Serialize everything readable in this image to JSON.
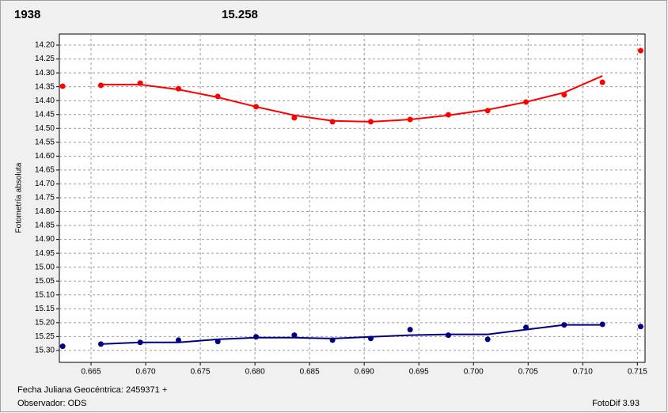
{
  "chart_data": {
    "type": "scatter",
    "header_labels": [
      "1938",
      "15.258"
    ],
    "y_label": "Fotometría absoluta",
    "footer": {
      "date": "Fecha Juliana Geocéntrica: 2459371 +",
      "observer": "Observador: ODS",
      "software": "FotoDif 3.93"
    },
    "xlim": [
      0.6621,
      0.7157
    ],
    "ylim": [
      15.343,
      14.16
    ],
    "xticks": [
      0.665,
      {
        "value": 0.67,
        "label": "0.670"
      },
      0.675,
      {
        "value": 0.68,
        "label": "0.680"
      },
      0.685,
      {
        "value": 0.69,
        "label": "0.690"
      },
      0.695,
      {
        "value": 0.7,
        "label": "0.700"
      },
      0.705,
      {
        "value": 0.71,
        "label": "0.710"
      },
      0.715
    ],
    "yticks": [
      {
        "value": 14.2,
        "label": "14.20"
      },
      14.25,
      {
        "value": 14.3,
        "label": "14.30"
      },
      14.35,
      {
        "value": 14.4,
        "label": "14.40"
      },
      14.45,
      {
        "value": 14.5,
        "label": "14.50"
      },
      14.55,
      {
        "value": 14.6,
        "label": "14.60"
      },
      14.65,
      {
        "value": 14.7,
        "label": "14.70"
      },
      14.75,
      {
        "value": 14.8,
        "label": "14.80"
      },
      14.85,
      {
        "value": 14.9,
        "label": "14.90"
      },
      14.95,
      {
        "value": 15,
        "label": "15.00"
      },
      15.05,
      {
        "value": 15.1,
        "label": "15.10"
      },
      15.15,
      {
        "value": 15.2,
        "label": "15.20"
      },
      15.25,
      {
        "value": 15.3,
        "label": "15.30"
      }
    ],
    "grid": true,
    "series": [
      {
        "color": "#ff0000",
        "mode": "markers",
        "x": [
          0.6624,
          0.6659,
          0.6695,
          0.673,
          0.6766,
          0.6801,
          0.6836,
          0.6871,
          0.6906,
          0.6942,
          0.6977,
          0.7013,
          0.7048,
          0.7083,
          0.7118,
          0.7153
        ],
        "values": [
          14.348,
          14.345,
          14.337,
          14.357,
          14.385,
          14.422,
          14.462,
          14.476,
          14.476,
          14.468,
          14.451,
          14.436,
          14.405,
          14.379,
          14.334,
          14.22
        ]
      },
      {
        "color": "#000080",
        "mode": "markers",
        "x": [
          0.6624,
          0.6659,
          0.6695,
          0.673,
          0.6766,
          0.6801,
          0.6836,
          0.6871,
          0.6906,
          0.6942,
          0.6977,
          0.7013,
          0.7048,
          0.7083,
          0.7118,
          0.7153
        ],
        "values": [
          15.285,
          15.277,
          15.271,
          15.263,
          15.268,
          15.251,
          15.245,
          15.263,
          15.257,
          15.225,
          15.245,
          15.26,
          15.217,
          15.208,
          15.206,
          15.214
        ]
      },
      {
        "color": "#ff0000",
        "mode": "line",
        "x": [
          0.6659,
          0.6695,
          0.673,
          0.6766,
          0.6801,
          0.6836,
          0.6871,
          0.6906,
          0.6942,
          0.6977,
          0.7013,
          0.7048,
          0.7083,
          0.7118
        ],
        "values": [
          14.342,
          14.342,
          14.36,
          14.388,
          14.422,
          14.453,
          14.473,
          14.476,
          14.468,
          14.453,
          14.433,
          14.405,
          14.371,
          14.311
        ]
      },
      {
        "color": "#000080",
        "mode": "line",
        "x": [
          0.6659,
          0.6695,
          0.673,
          0.6766,
          0.6801,
          0.6836,
          0.6871,
          0.6906,
          0.6942,
          0.6977,
          0.7013,
          0.7048,
          0.7083,
          0.7118
        ],
        "values": [
          15.277,
          15.271,
          15.271,
          15.26,
          15.254,
          15.254,
          15.257,
          15.251,
          15.245,
          15.242,
          15.242,
          15.225,
          15.208,
          15.208
        ]
      }
    ]
  }
}
